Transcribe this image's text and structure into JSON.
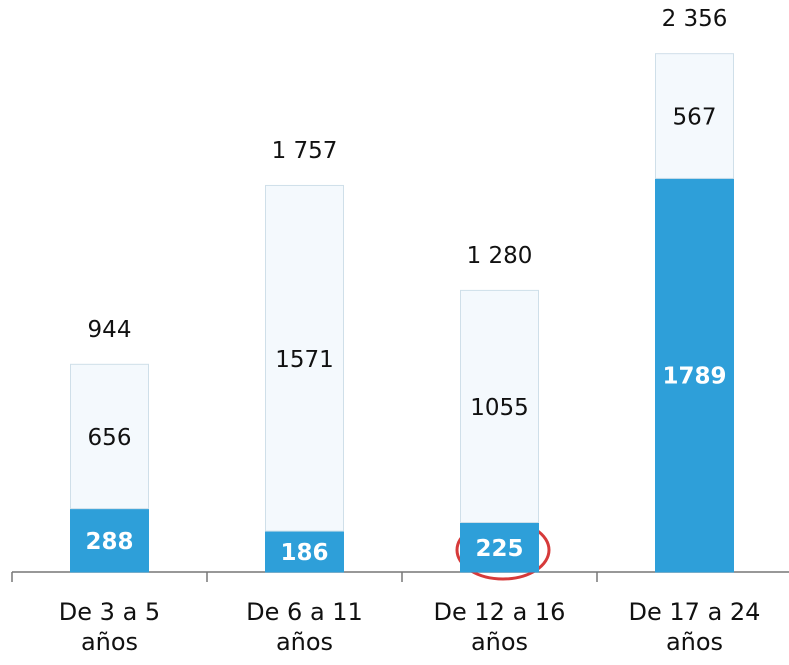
{
  "chart_data": {
    "type": "stacked_bar",
    "categories": [
      "De 3 a 5 años",
      "De 6 a 11 años",
      "De 12 a 16 años",
      "De 17 a 24 años"
    ],
    "series": [
      {
        "color": "#2e9fd9",
        "values": [
          288,
          186,
          225,
          1789
        ]
      },
      {
        "color": "#f4f9fd",
        "values": [
          656,
          1571,
          1055,
          567
        ]
      }
    ],
    "totals": [
      944,
      1757,
      1280,
      2356
    ],
    "total_labels": [
      "944",
      "1 757",
      "1 280",
      "2 356"
    ],
    "ylim": [
      0,
      2500
    ]
  }
}
